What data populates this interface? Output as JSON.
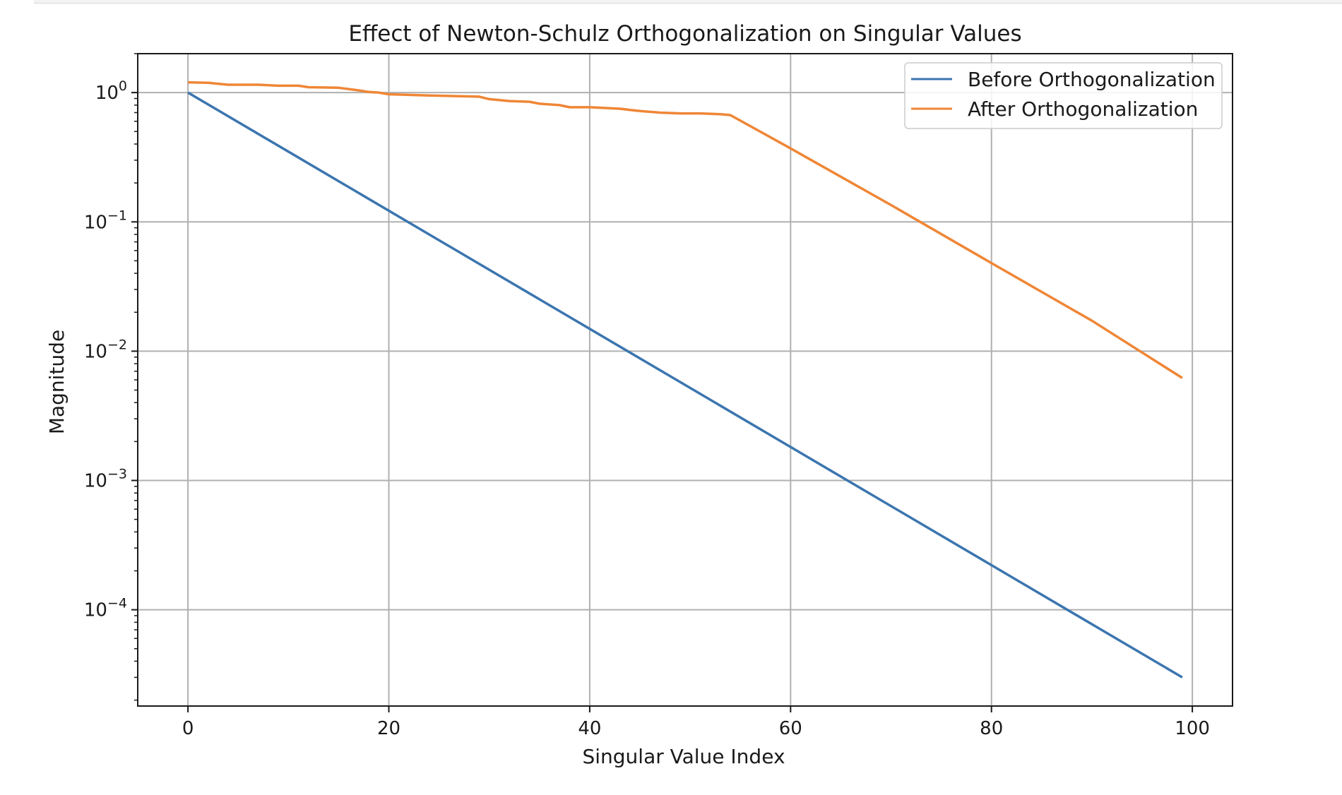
{
  "chart_data": {
    "type": "line",
    "title": "Effect of Newton-Schulz Orthogonalization on Singular Values",
    "xlabel": "Singular Value Index",
    "ylabel": "Magnitude",
    "xscale": "linear",
    "yscale": "log",
    "xlim": [
      -5,
      104
    ],
    "ylim": [
      1.8e-05,
      2.0
    ],
    "xticks": [
      0,
      20,
      40,
      60,
      80,
      100
    ],
    "xtick_labels": [
      "0",
      "20",
      "40",
      "60",
      "80",
      "100"
    ],
    "yticks": [
      {
        "value": 1,
        "base": "10",
        "exp": "0"
      },
      {
        "value": 0.1,
        "base": "10",
        "exp": "−1"
      },
      {
        "value": 0.01,
        "base": "10",
        "exp": "−2"
      },
      {
        "value": 0.001,
        "base": "10",
        "exp": "−3"
      },
      {
        "value": 0.0001,
        "base": "10",
        "exp": "−4"
      }
    ],
    "grid": true,
    "legend_position": "top-right",
    "series": [
      {
        "name": "Before Orthogonalization",
        "color": "#3b75af",
        "points": [
          [
            0,
            1.0
          ],
          [
            99,
            3e-05
          ]
        ]
      },
      {
        "name": "After Orthogonalization",
        "color": "#ef8636",
        "points": [
          [
            0,
            1.2
          ],
          [
            2,
            1.19
          ],
          [
            4,
            1.15
          ],
          [
            7,
            1.15
          ],
          [
            9,
            1.13
          ],
          [
            11,
            1.13
          ],
          [
            12,
            1.1
          ],
          [
            15,
            1.09
          ],
          [
            17,
            1.04
          ],
          [
            18,
            1.01
          ],
          [
            19,
            1.0
          ],
          [
            20,
            0.97
          ],
          [
            24,
            0.95
          ],
          [
            29,
            0.93
          ],
          [
            30,
            0.89
          ],
          [
            32,
            0.86
          ],
          [
            34,
            0.85
          ],
          [
            35,
            0.82
          ],
          [
            37,
            0.8
          ],
          [
            38,
            0.77
          ],
          [
            40,
            0.77
          ],
          [
            43,
            0.75
          ],
          [
            45,
            0.72
          ],
          [
            47,
            0.7
          ],
          [
            49,
            0.69
          ],
          [
            51,
            0.69
          ],
          [
            53,
            0.68
          ],
          [
            54,
            0.67
          ],
          [
            60,
            0.37
          ],
          [
            70,
            0.135
          ],
          [
            80,
            0.048
          ],
          [
            90,
            0.0172
          ],
          [
            99,
            0.0062
          ]
        ]
      }
    ]
  }
}
